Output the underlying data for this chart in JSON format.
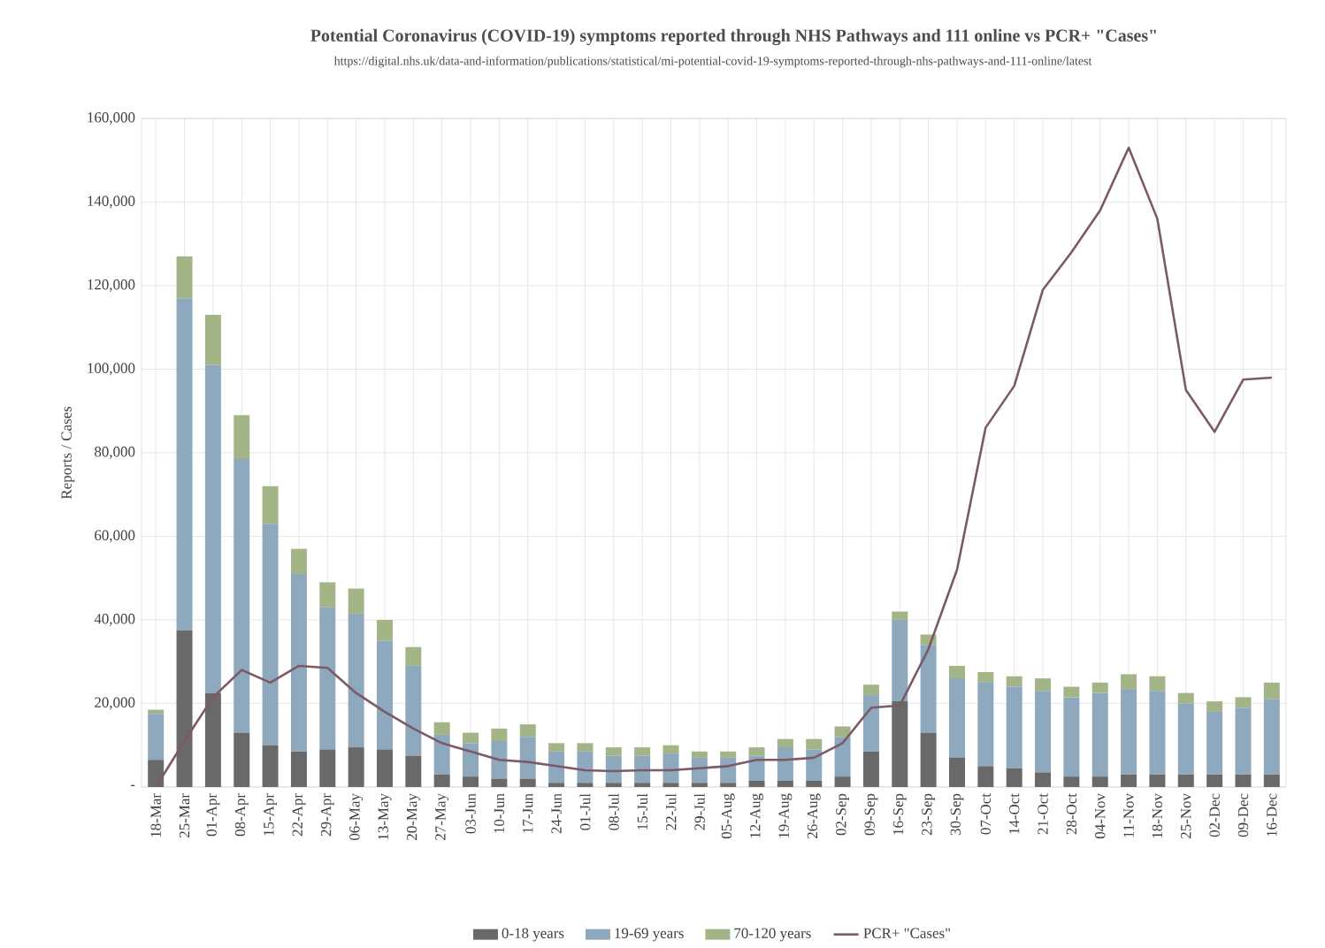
{
  "chart_data": {
    "type": "bar",
    "stacked": true,
    "title": "Potential Coronavirus (COVID-19)  symptoms reported through NHS Pathways and 111 online vs PCR+ \"Cases\"",
    "subtitle": "https://digital.nhs.uk/data-and-information/publications/statistical/mi-potential-covid-19-symptoms-reported-through-nhs-pathways-and-111-online/latest",
    "ylabel": "Reports / Cases",
    "categories": [
      "18-Mar",
      "25-Mar",
      "01-Apr",
      "08-Apr",
      "15-Apr",
      "22-Apr",
      "29-Apr",
      "06-May",
      "13-May",
      "20-May",
      "27-May",
      "03-Jun",
      "10-Jun",
      "17-Jun",
      "24-Jun",
      "01-Jul",
      "08-Jul",
      "15-Jul",
      "22-Jul",
      "29-Jul",
      "05-Aug",
      "12-Aug",
      "19-Aug",
      "26-Aug",
      "02-Sep",
      "09-Sep",
      "16-Sep",
      "23-Sep",
      "30-Sep",
      "07-Oct",
      "14-Oct",
      "21-Oct",
      "28-Oct",
      "04-Nov",
      "11-Nov",
      "18-Nov",
      "25-Nov",
      "02-Dec",
      "09-Dec",
      "16-Dec"
    ],
    "series": [
      {
        "name": "0-18 years",
        "color": "#696969",
        "values": [
          6500,
          37500,
          22500,
          13000,
          10000,
          8500,
          9000,
          9500,
          9000,
          7500,
          3000,
          2500,
          2000,
          2000,
          1000,
          1000,
          1000,
          1000,
          1000,
          1000,
          1000,
          1500,
          1500,
          1500,
          2500,
          8500,
          20500,
          13000,
          7000,
          5000,
          4500,
          3500,
          2500,
          2500,
          3000,
          3000,
          3000,
          3000,
          3000,
          3000
        ]
      },
      {
        "name": "19-69 years",
        "color": "#8ea9bd",
        "values": [
          11000,
          79500,
          78500,
          65500,
          53000,
          42500,
          34000,
          32000,
          26000,
          21500,
          9500,
          8000,
          9000,
          10000,
          7500,
          7500,
          6500,
          6500,
          7000,
          6000,
          6000,
          6000,
          8000,
          7500,
          9500,
          13500,
          19500,
          21000,
          19000,
          20000,
          19500,
          19500,
          19000,
          20000,
          20500,
          20000,
          17000,
          15000,
          16000,
          18000
        ]
      },
      {
        "name": "70-120 years",
        "color": "#a3b586",
        "values": [
          1000,
          10000,
          12000,
          10500,
          9000,
          6000,
          6000,
          6000,
          5000,
          4500,
          3000,
          2500,
          3000,
          3000,
          2000,
          2000,
          2000,
          2000,
          2000,
          1500,
          1500,
          2000,
          2000,
          2500,
          2500,
          2500,
          2000,
          2500,
          3000,
          2500,
          2500,
          3000,
          2500,
          2500,
          3500,
          3500,
          2500,
          2500,
          2500,
          4000
        ]
      },
      {
        "name": "PCR+ \"Cases\"",
        "type": "line",
        "color": "#7b5a66",
        "values": [
          0,
          11000,
          21500,
          28000,
          25000,
          29000,
          28500,
          22500,
          18000,
          14000,
          10500,
          8500,
          6500,
          6000,
          5000,
          4000,
          3800,
          4000,
          4000,
          4500,
          5000,
          6500,
          6500,
          7000,
          10500,
          19000,
          19500,
          33000,
          52000,
          86000,
          96000,
          119000,
          128000,
          138000,
          153000,
          136000,
          95000,
          85000,
          97500,
          98000
        ]
      }
    ],
    "ylim": [
      0,
      160000
    ],
    "yticks": [
      {
        "value": 0,
        "label": "-"
      },
      {
        "value": 20000,
        "label": "20,000"
      },
      {
        "value": 40000,
        "label": "40,000"
      },
      {
        "value": 60000,
        "label": "60,000"
      },
      {
        "value": 80000,
        "label": "80,000"
      },
      {
        "value": 100000,
        "label": "100,000"
      },
      {
        "value": 120000,
        "label": "120,000"
      },
      {
        "value": 140000,
        "label": "140,000"
      },
      {
        "value": 160000,
        "label": "160,000"
      }
    ],
    "grid": true,
    "legend": "bottom"
  }
}
